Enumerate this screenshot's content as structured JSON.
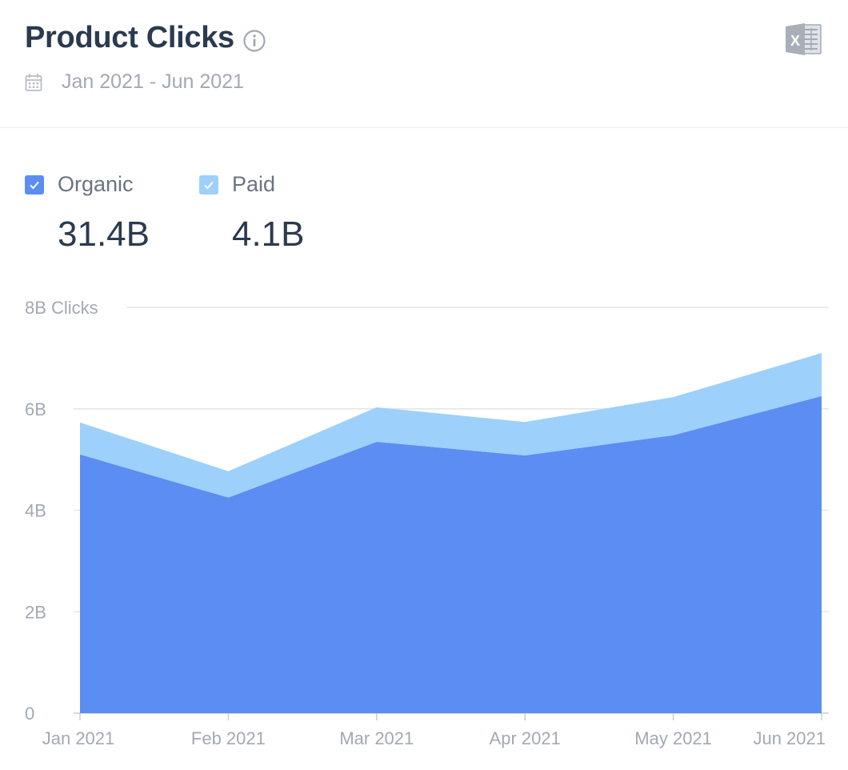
{
  "header": {
    "title": "Product Clicks",
    "date_range": "Jan 2021 - Jun 2021",
    "info_icon": "info-icon",
    "calendar_icon": "calendar-icon",
    "export_icon": "excel-export-icon"
  },
  "legend": [
    {
      "label": "Organic",
      "value": "31.4B",
      "color": "#5b8df2",
      "checked": true
    },
    {
      "label": "Paid",
      "value": "4.1B",
      "color": "#9dd0fa",
      "checked": true
    }
  ],
  "chart_data": {
    "type": "area",
    "stacked": true,
    "categories": [
      "Jan 2021",
      "Feb 2021",
      "Mar 2021",
      "Apr 2021",
      "May 2021",
      "Jun 2021"
    ],
    "series": [
      {
        "name": "Organic",
        "values": [
          5.1,
          4.25,
          5.35,
          5.08,
          5.48,
          6.25
        ],
        "color": "#5b8df2"
      },
      {
        "name": "Paid",
        "values": [
          0.63,
          0.52,
          0.68,
          0.66,
          0.75,
          0.85
        ],
        "color": "#9dd0fa"
      }
    ],
    "ylabel": "Clicks",
    "yticks": [
      "0",
      "2B",
      "4B",
      "6B",
      "8B"
    ],
    "ylim": [
      0,
      8
    ],
    "grid": true
  }
}
